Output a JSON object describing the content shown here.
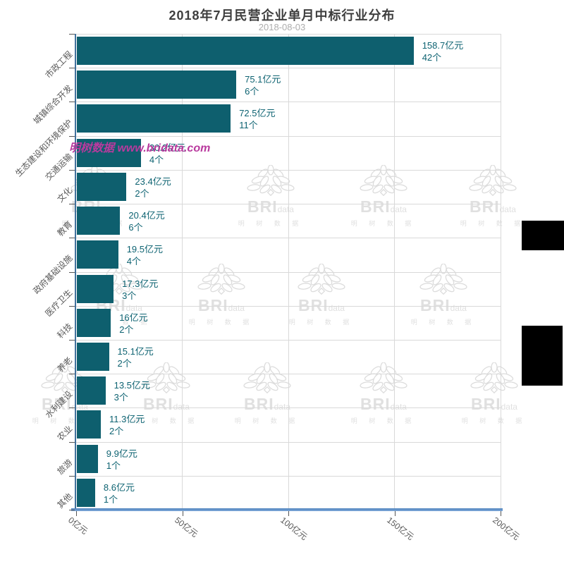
{
  "header": {
    "title": "2018年7月民营企业单月中标行业分布",
    "subtitle": "2018-08-03"
  },
  "chart_data": {
    "type": "bar",
    "orientation": "horizontal",
    "title": "2018年7月民营企业单月中标行业分布",
    "subtitle": "2018-08-03",
    "categories": [
      "市政工程",
      "城镇综合开发",
      "生态建设和环境保护",
      "交通运输",
      "文化",
      "教育",
      "政府基础设施",
      "医疗卫生",
      "科技",
      "养老",
      "水利建设",
      "农业",
      "旅游",
      "其他"
    ],
    "values": [
      158.7,
      75.1,
      72.5,
      30.2,
      23.4,
      20.4,
      19.5,
      17.3,
      16,
      15.1,
      13.5,
      11.3,
      9.9,
      8.6
    ],
    "value_unit": "亿元",
    "counts": [
      42,
      6,
      11,
      4,
      2,
      6,
      4,
      3,
      2,
      2,
      3,
      2,
      1,
      1
    ],
    "count_unit": "个",
    "xlim": [
      0,
      200
    ],
    "x_tick_labels": [
      "0亿元",
      "50亿元",
      "100亿元",
      "150亿元",
      "200亿元"
    ],
    "grid": true,
    "legend": "none",
    "xlabel": "",
    "ylabel": ""
  },
  "colors": {
    "bar": "#0e5f6e",
    "value_label": "#0e6372",
    "y_axis": "#41719c",
    "x_axis_line": "#5e91c8",
    "grid": "#d9d9d9",
    "watermark_pink": "#b93a9e",
    "watermark_gray": "#e0e0e0"
  },
  "watermarks": {
    "pink_text": "明树数据 www.bridata.com",
    "logo_brand": "BRI",
    "logo_suffix": "data",
    "logo_cn": "明 树 数 据"
  }
}
